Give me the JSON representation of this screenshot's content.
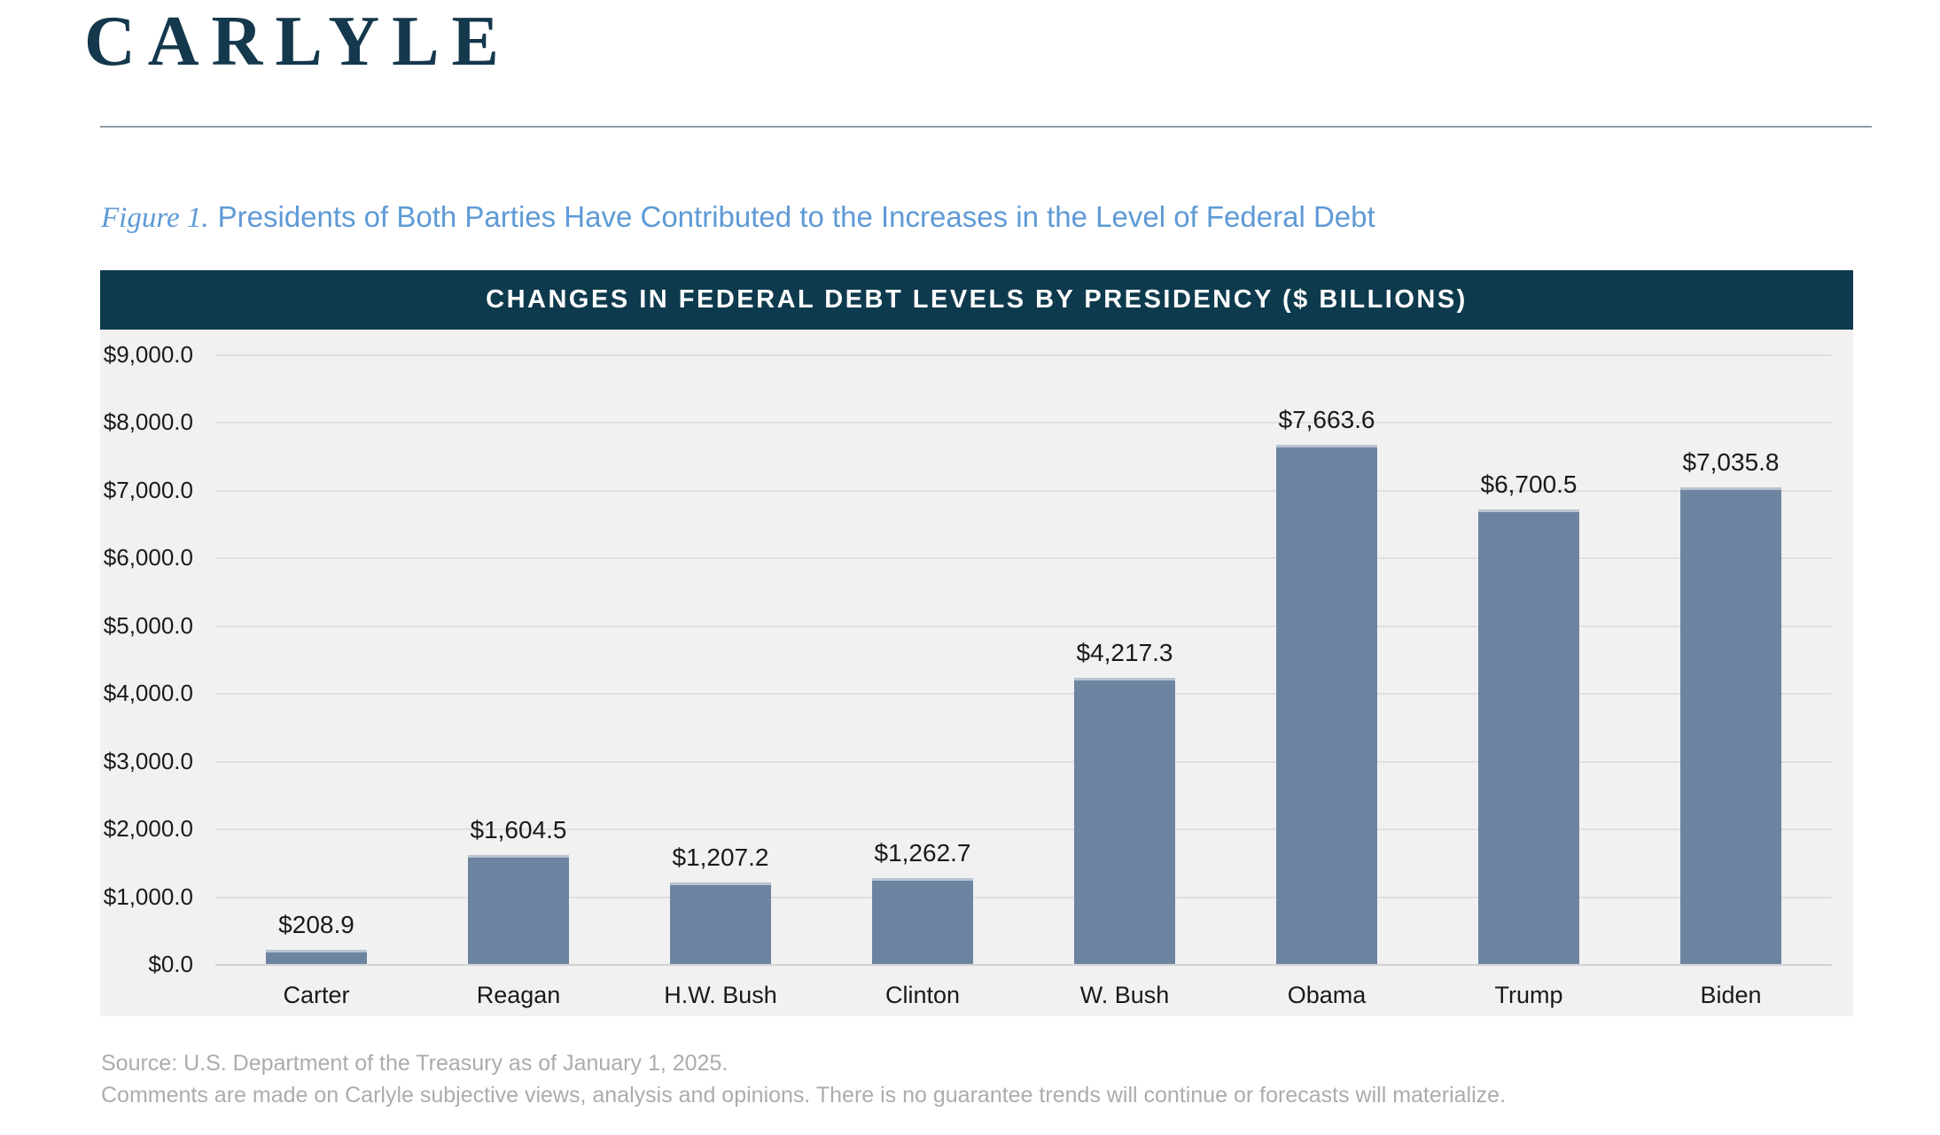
{
  "logo": "CARLYLE",
  "figure": {
    "label": "Figure 1.",
    "title": "Presidents of Both Parties Have Contributed to the Increases in the Level of Federal Debt"
  },
  "chart_data": {
    "type": "bar",
    "title": "CHANGES IN FEDERAL DEBT LEVELS BY PRESIDENCY ($ BILLIONS)",
    "categories": [
      "Carter",
      "Reagan",
      "H.W. Bush",
      "Clinton",
      "W. Bush",
      "Obama",
      "Trump",
      "Biden"
    ],
    "values": [
      208.9,
      1604.5,
      1207.2,
      1262.7,
      4217.3,
      7663.6,
      6700.5,
      7035.8
    ],
    "value_labels": [
      "$208.9",
      "$1,604.5",
      "$1,207.2",
      "$1,262.7",
      "$4,217.3",
      "$7,663.6",
      "$6,700.5",
      "$7,035.8"
    ],
    "y_tick_labels": [
      "$0.0",
      "$1,000.0",
      "$2,000.0",
      "$3,000.0",
      "$4,000.0",
      "$5,000.0",
      "$6,000.0",
      "$7,000.0",
      "$8,000.0",
      "$9,000.0"
    ],
    "y_tick_values": [
      0,
      1000,
      2000,
      3000,
      4000,
      5000,
      6000,
      7000,
      8000,
      9000
    ],
    "ylim": [
      0,
      9000
    ],
    "xlabel": "",
    "ylabel": "",
    "grid": true,
    "legend": "none",
    "bar_color": "#6D84A1",
    "plot_background": "#F1F1F1",
    "header_background": "#0E3A4D"
  },
  "footer": {
    "line1": "Source: U.S. Department of the Treasury as of January 1, 2025.",
    "line2": "Comments are made on Carlyle subjective views, analysis and opinions. There is no guarantee trends will continue or forecasts will materialize."
  },
  "colors": {
    "brand_navy": "#14384C",
    "figure_title_blue": "#5E9AD6",
    "divider_gray": "#8C9CA6",
    "source_text_gray": "#ACACAC"
  }
}
